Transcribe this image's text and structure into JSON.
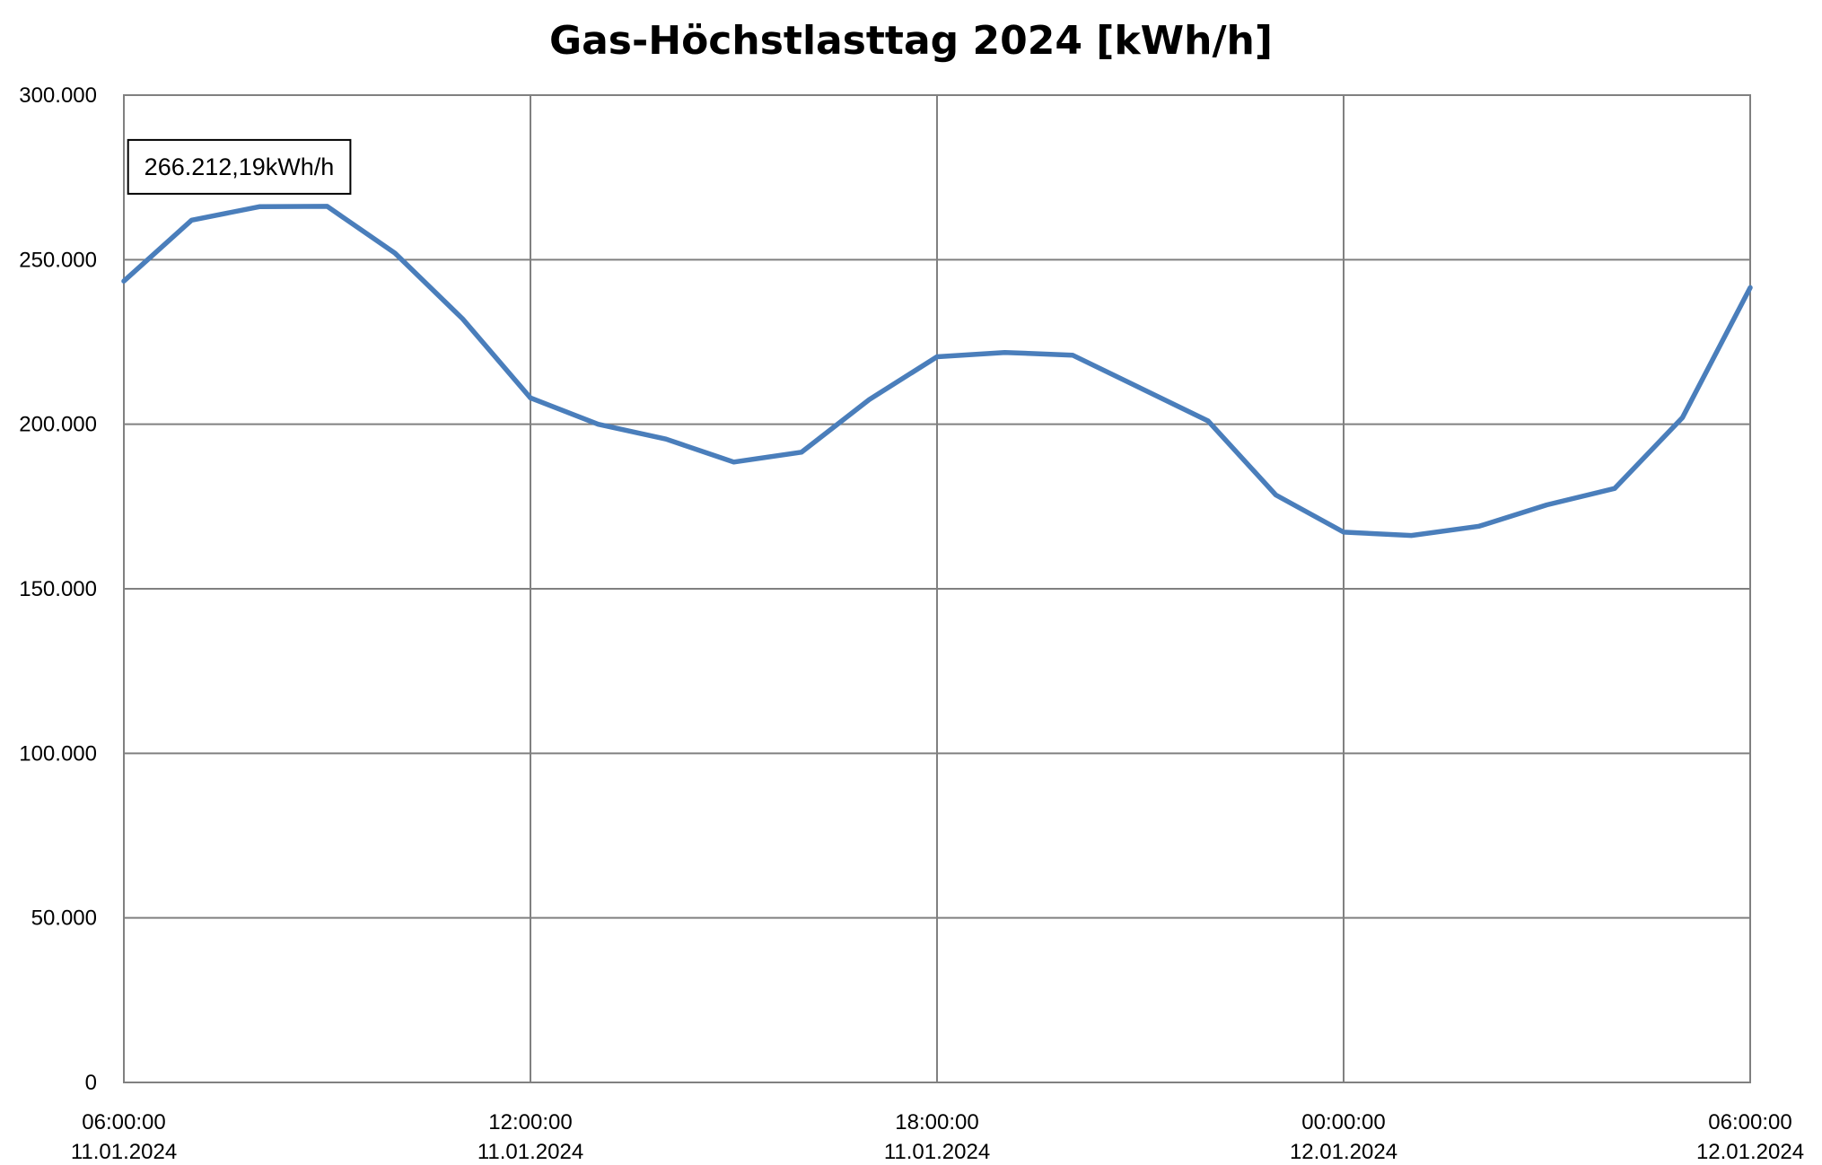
{
  "chart_data": {
    "type": "line",
    "title": "Gas-Höchstlasttag 2024 [kWh/h]",
    "xlabel": "",
    "ylabel": "",
    "ylim": [
      0,
      300000
    ],
    "xlim": [
      "2024-01-11 06:00:00",
      "2024-01-12 06:00:00"
    ],
    "grid": true,
    "legend": "none",
    "y_ticks": [
      {
        "value": 0,
        "label": "0"
      },
      {
        "value": 50000,
        "label": "50.000"
      },
      {
        "value": 100000,
        "label": "100.000"
      },
      {
        "value": 150000,
        "label": "150.000"
      },
      {
        "value": 200000,
        "label": "200.000"
      },
      {
        "value": 250000,
        "label": "250.000"
      },
      {
        "value": 300000,
        "label": "300.000"
      }
    ],
    "x_ticks": [
      {
        "value": "2024-01-11 06:00:00",
        "time": "06:00:00",
        "date": "11.01.2024"
      },
      {
        "value": "2024-01-11 12:00:00",
        "time": "12:00:00",
        "date": "11.01.2024"
      },
      {
        "value": "2024-01-11 18:00:00",
        "time": "18:00:00",
        "date": "11.01.2024"
      },
      {
        "value": "2024-01-12 00:00:00",
        "time": "00:00:00",
        "date": "12.01.2024"
      },
      {
        "value": "2024-01-12 06:00:00",
        "time": "06:00:00",
        "date": "12.01.2024"
      }
    ],
    "series": [
      {
        "name": "",
        "color": "#4a7ebb",
        "points": [
          {
            "x": "2024-01-11 06:00:00",
            "y": 243500
          },
          {
            "x": "2024-01-11 07:00:00",
            "y": 262000
          },
          {
            "x": "2024-01-11 08:00:00",
            "y": 266100
          },
          {
            "x": "2024-01-11 09:00:00",
            "y": 266212.19
          },
          {
            "x": "2024-01-11 10:00:00",
            "y": 252000
          },
          {
            "x": "2024-01-11 11:00:00",
            "y": 232000
          },
          {
            "x": "2024-01-11 12:00:00",
            "y": 208000
          },
          {
            "x": "2024-01-11 13:00:00",
            "y": 200000
          },
          {
            "x": "2024-01-11 14:00:00",
            "y": 195500
          },
          {
            "x": "2024-01-11 15:00:00",
            "y": 188500
          },
          {
            "x": "2024-01-11 16:00:00",
            "y": 191500
          },
          {
            "x": "2024-01-11 17:00:00",
            "y": 207500
          },
          {
            "x": "2024-01-11 18:00:00",
            "y": 220500
          },
          {
            "x": "2024-01-11 19:00:00",
            "y": 221800
          },
          {
            "x": "2024-01-11 20:00:00",
            "y": 221000
          },
          {
            "x": "2024-01-11 21:00:00",
            "y": 211000
          },
          {
            "x": "2024-01-11 22:00:00",
            "y": 201000
          },
          {
            "x": "2024-01-11 23:00:00",
            "y": 178500
          },
          {
            "x": "2024-01-12 00:00:00",
            "y": 167200
          },
          {
            "x": "2024-01-12 01:00:00",
            "y": 166200
          },
          {
            "x": "2024-01-12 02:00:00",
            "y": 169000
          },
          {
            "x": "2024-01-12 03:00:00",
            "y": 175500
          },
          {
            "x": "2024-01-12 04:00:00",
            "y": 180500
          },
          {
            "x": "2024-01-12 05:00:00",
            "y": 202000
          },
          {
            "x": "2024-01-12 06:00:00",
            "y": 241500
          }
        ]
      }
    ],
    "annotations": [
      {
        "text": "266.212,19kWh/h",
        "x": "2024-01-11 09:00:00",
        "y": 266212.19
      }
    ]
  }
}
